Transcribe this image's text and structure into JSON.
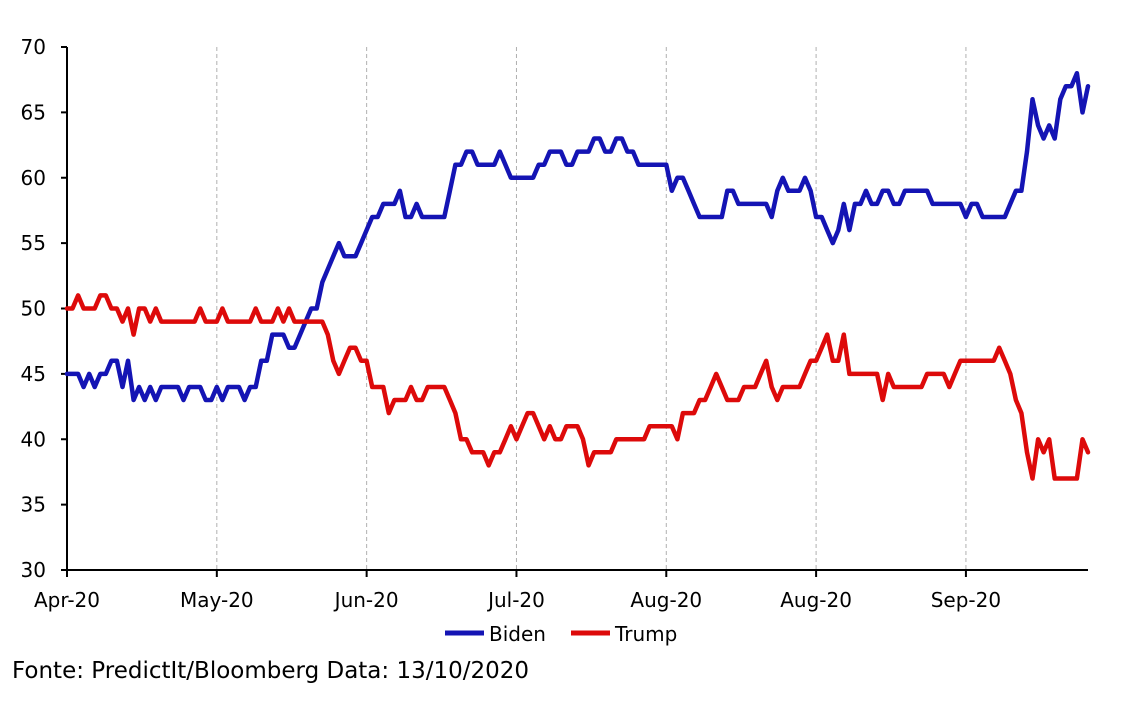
{
  "chart_data": {
    "type": "line",
    "ylim": [
      30,
      70
    ],
    "yticks": [
      30,
      35,
      40,
      45,
      50,
      55,
      60,
      65,
      70
    ],
    "xtick_labels": [
      "Apr-20",
      "May-20",
      "Jun-20",
      "Jul-20",
      "Aug-20",
      "Aug-20",
      "Sep-20"
    ],
    "xtick_positions": [
      0,
      27,
      54,
      81,
      108,
      135,
      162
    ],
    "grid": "vertical dashed",
    "legend_position": "bottom",
    "series": [
      {
        "name": "Biden",
        "color": "#1414b4",
        "values": [
          45,
          45,
          45,
          44,
          45,
          44,
          45,
          45,
          46,
          46,
          44,
          46,
          43,
          44,
          43,
          44,
          43,
          44,
          44,
          44,
          44,
          43,
          44,
          44,
          44,
          43,
          43,
          44,
          43,
          44,
          44,
          44,
          43,
          44,
          44,
          46,
          46,
          48,
          48,
          48,
          47,
          47,
          48,
          49,
          50,
          50,
          52,
          53,
          54,
          55,
          54,
          54,
          54,
          55,
          56,
          57,
          57,
          58,
          58,
          58,
          59,
          57,
          57,
          58,
          57,
          57,
          57,
          57,
          57,
          59,
          61,
          61,
          62,
          62,
          61,
          61,
          61,
          61,
          62,
          61,
          60,
          60,
          60,
          60,
          60,
          61,
          61,
          62,
          62,
          62,
          61,
          61,
          62,
          62,
          62,
          63,
          63,
          62,
          62,
          63,
          63,
          62,
          62,
          61,
          61,
          61,
          61,
          61,
          61,
          59,
          60,
          60,
          59,
          58,
          57,
          57,
          57,
          57,
          57,
          59,
          59,
          58,
          58,
          58,
          58,
          58,
          58,
          57,
          59,
          60,
          59,
          59,
          59,
          60,
          59,
          57,
          57,
          56,
          55,
          56,
          58,
          56,
          58,
          58,
          59,
          58,
          58,
          59,
          59,
          58,
          58,
          59,
          59,
          59,
          59,
          59,
          58,
          58,
          58,
          58,
          58,
          58,
          57,
          58,
          58,
          57,
          57,
          57,
          57,
          57,
          58,
          59,
          59,
          62,
          66,
          64,
          63,
          64,
          63,
          66,
          67,
          67,
          68,
          65,
          67
        ]
      },
      {
        "name": "Trump",
        "color": "#dd0a0a",
        "values": [
          50,
          50,
          51,
          50,
          50,
          50,
          51,
          51,
          50,
          50,
          49,
          50,
          48,
          50,
          50,
          49,
          50,
          49,
          49,
          49,
          49,
          49,
          49,
          49,
          50,
          49,
          49,
          49,
          50,
          49,
          49,
          49,
          49,
          49,
          50,
          49,
          49,
          49,
          50,
          49,
          50,
          49,
          49,
          49,
          49,
          49,
          49,
          48,
          46,
          45,
          46,
          47,
          47,
          46,
          46,
          44,
          44,
          44,
          42,
          43,
          43,
          43,
          44,
          43,
          43,
          44,
          44,
          44,
          44,
          43,
          42,
          40,
          40,
          39,
          39,
          39,
          38,
          39,
          39,
          40,
          41,
          40,
          41,
          42,
          42,
          41,
          40,
          41,
          40,
          40,
          41,
          41,
          41,
          40,
          38,
          39,
          39,
          39,
          39,
          40,
          40,
          40,
          40,
          40,
          40,
          41,
          41,
          41,
          41,
          41,
          40,
          42,
          42,
          42,
          43,
          43,
          44,
          45,
          44,
          43,
          43,
          43,
          44,
          44,
          44,
          45,
          46,
          44,
          43,
          44,
          44,
          44,
          44,
          45,
          46,
          46,
          47,
          48,
          46,
          46,
          48,
          45,
          45,
          45,
          45,
          45,
          45,
          43,
          45,
          44,
          44,
          44,
          44,
          44,
          44,
          45,
          45,
          45,
          45,
          44,
          45,
          46,
          46,
          46,
          46,
          46,
          46,
          46,
          47,
          46,
          45,
          43,
          42,
          39,
          37,
          40,
          39,
          40,
          37,
          37,
          37,
          37,
          37,
          40,
          39
        ]
      }
    ],
    "source_note": "Fonte: PredictIt/Bloomberg Data: 13/10/2020"
  }
}
